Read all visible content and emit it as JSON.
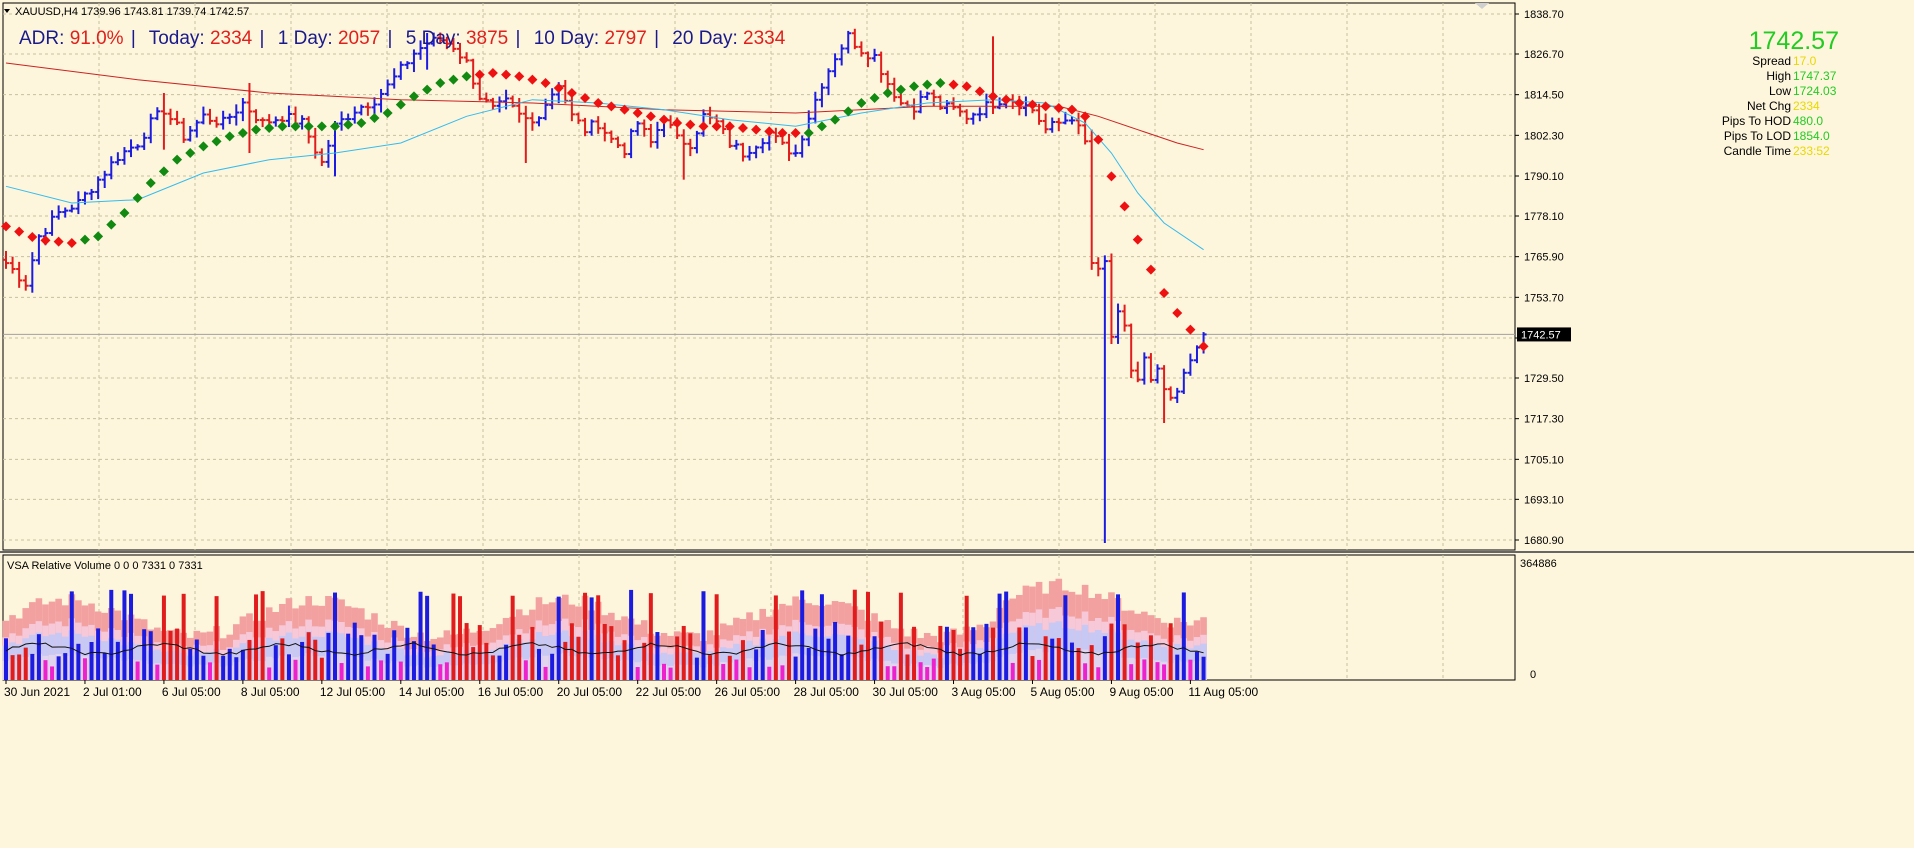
{
  "header": {
    "symbol_line": "XAUUSD,H4  1739.96 1743.81 1739.74 1742.57"
  },
  "adr": {
    "adr_label": "ADR:",
    "adr_value": "91.0%",
    "today_label": "Today:",
    "today_value": "2334",
    "d1_label": "1 Day:",
    "d1_value": "2057",
    "d5_label": "5 Day:",
    "d5_value": "3875",
    "d10_label": "10 Day:",
    "d10_value": "2797",
    "d20_label": "20 Day:",
    "d20_value": "2334",
    "sep": "|"
  },
  "info_panel": {
    "price": "1742.57",
    "rows": [
      {
        "label": "Spread",
        "value": "17.0",
        "color": "#e8d800"
      },
      {
        "label": "High",
        "value": "1747.37",
        "color": "#22cc22"
      },
      {
        "label": "Low",
        "value": "1724.03",
        "color": "#22cc22"
      },
      {
        "label": "Net Chg",
        "value": "2334",
        "color": "#e8d800"
      },
      {
        "label": "Pips To HOD",
        "value": "480.0",
        "color": "#22cc22"
      },
      {
        "label": "Pips To LOD",
        "value": "1854.0",
        "color": "#22cc22"
      },
      {
        "label": "Candle Time",
        "value": "233:52",
        "color": "#e8d800"
      }
    ]
  },
  "volume_panel": {
    "title": "VSA Relative Volume 0 0 0 7331 0 7331",
    "y_max_label": "364886",
    "y_min_label": "0"
  },
  "colors": {
    "background": "#fdf6dc",
    "bull_bar": "#1c1ce0",
    "bear_bar": "#e01c1c",
    "ma_up": "#128a12",
    "ma_down": "#ee1111",
    "ma_slow": "#cc2222",
    "ma_mid": "#33bbee",
    "grid": "#c8c0a0"
  },
  "chart_data": {
    "type": "ohlc",
    "symbol": "XAUUSD",
    "timeframe": "H4",
    "last_price": 1742.57,
    "ylim": [
      1676.0,
      1842.0
    ],
    "y_ticks": [
      1838.7,
      1826.7,
      1814.5,
      1802.3,
      1790.1,
      1778.1,
      1765.9,
      1753.7,
      1741.5,
      1729.5,
      1717.3,
      1705.1,
      1693.1,
      1680.9
    ],
    "y_tick_labels": [
      "1838.70",
      "1826.70",
      "1814.50",
      "1802.30",
      "1790.10",
      "1778.10",
      "1765.90",
      "1753.70",
      "",
      "1729.50",
      "1717.30",
      "1705.10",
      "1693.10",
      "1680.90"
    ],
    "x_labels": [
      "30 Jun 2021",
      "2 Jul 01:00",
      "6 Jul 05:00",
      "8 Jul 05:00",
      "12 Jul 05:00",
      "14 Jul 05:00",
      "16 Jul 05:00",
      "20 Jul 05:00",
      "22 Jul 05:00",
      "26 Jul 05:00",
      "28 Jul 05:00",
      "30 Jul 05:00",
      "3 Aug 05:00",
      "5 Aug 05:00",
      "9 Aug 05:00",
      "11 Aug 05:00"
    ],
    "x_label_bar_index": [
      0,
      12,
      24,
      36,
      48,
      60,
      72,
      84,
      96,
      108,
      120,
      132,
      144,
      156,
      168,
      180
    ],
    "close_path": [
      [
        0,
        1764
      ],
      [
        3,
        1758
      ],
      [
        5,
        1772
      ],
      [
        8,
        1779
      ],
      [
        11,
        1782
      ],
      [
        14,
        1789
      ],
      [
        17,
        1796
      ],
      [
        20,
        1800
      ],
      [
        22,
        1806
      ],
      [
        24,
        1810
      ],
      [
        27,
        1802
      ],
      [
        30,
        1808
      ],
      [
        33,
        1806
      ],
      [
        36,
        1812
      ],
      [
        39,
        1806
      ],
      [
        42,
        1808
      ],
      [
        45,
        1806
      ],
      [
        48,
        1794
      ],
      [
        50,
        1805
      ],
      [
        53,
        1810
      ],
      [
        56,
        1813
      ],
      [
        58,
        1817
      ],
      [
        60,
        1822
      ],
      [
        62,
        1827
      ],
      [
        64,
        1830
      ],
      [
        66,
        1831
      ],
      [
        68,
        1829
      ],
      [
        70,
        1824
      ],
      [
        72,
        1814
      ],
      [
        74,
        1810
      ],
      [
        76,
        1812
      ],
      [
        78,
        1808
      ],
      [
        80,
        1806
      ],
      [
        82,
        1812
      ],
      [
        84,
        1818
      ],
      [
        86,
        1808
      ],
      [
        88,
        1804
      ],
      [
        90,
        1806
      ],
      [
        92,
        1801
      ],
      [
        94,
        1798
      ],
      [
        96,
        1806
      ],
      [
        98,
        1800
      ],
      [
        100,
        1808
      ],
      [
        102,
        1801
      ],
      [
        104,
        1800
      ],
      [
        106,
        1808
      ],
      [
        108,
        1806
      ],
      [
        110,
        1800
      ],
      [
        112,
        1797
      ],
      [
        114,
        1800
      ],
      [
        116,
        1803
      ],
      [
        118,
        1799
      ],
      [
        120,
        1797
      ],
      [
        122,
        1808
      ],
      [
        124,
        1818
      ],
      [
        126,
        1826
      ],
      [
        128,
        1832
      ],
      [
        130,
        1828
      ],
      [
        132,
        1826
      ],
      [
        134,
        1818
      ],
      [
        136,
        1812
      ],
      [
        138,
        1811
      ],
      [
        140,
        1815
      ],
      [
        142,
        1811
      ],
      [
        144,
        1810
      ],
      [
        146,
        1808
      ],
      [
        148,
        1810
      ],
      [
        150,
        1812
      ],
      [
        152,
        1814
      ],
      [
        154,
        1812
      ],
      [
        156,
        1810
      ],
      [
        158,
        1804
      ],
      [
        160,
        1806
      ],
      [
        162,
        1808
      ],
      [
        164,
        1800
      ],
      [
        165,
        1764
      ],
      [
        166,
        1761
      ],
      [
        167,
        1764
      ],
      [
        168,
        1742
      ],
      [
        169,
        1748
      ],
      [
        170,
        1744
      ],
      [
        171,
        1732
      ],
      [
        172,
        1729
      ],
      [
        173,
        1735
      ],
      [
        174,
        1728
      ],
      [
        175,
        1731
      ],
      [
        176,
        1726
      ],
      [
        177,
        1722
      ],
      [
        178,
        1725
      ],
      [
        179,
        1730
      ],
      [
        180,
        1735
      ],
      [
        181,
        1740
      ],
      [
        182,
        1742.57
      ]
    ],
    "spikes": [
      {
        "bar": 24,
        "high": 1815,
        "low": 1798
      },
      {
        "bar": 37,
        "high": 1818,
        "low": 1797
      },
      {
        "bar": 50,
        "high": 1803,
        "low": 1790
      },
      {
        "bar": 64,
        "high": 1833,
        "low": 1822
      },
      {
        "bar": 79,
        "high": 1810,
        "low": 1794
      },
      {
        "bar": 103,
        "high": 1802,
        "low": 1789
      },
      {
        "bar": 150,
        "high": 1832,
        "low": 1810
      },
      {
        "bar": 165,
        "high": 1804,
        "low": 1762
      },
      {
        "bar": 167,
        "high": 1766,
        "low": 1680
      },
      {
        "bar": 176,
        "high": 1732,
        "low": 1716
      }
    ],
    "ma_fast": [
      [
        0,
        1775
      ],
      [
        5,
        1771
      ],
      [
        10,
        1770
      ],
      [
        14,
        1772
      ],
      [
        18,
        1779
      ],
      [
        22,
        1788
      ],
      [
        26,
        1795
      ],
      [
        30,
        1799
      ],
      [
        34,
        1802
      ],
      [
        38,
        1804
      ],
      [
        42,
        1805
      ],
      [
        46,
        1805
      ],
      [
        50,
        1805
      ],
      [
        54,
        1806
      ],
      [
        58,
        1809
      ],
      [
        62,
        1814
      ],
      [
        66,
        1818
      ],
      [
        70,
        1820
      ],
      [
        74,
        1821
      ],
      [
        78,
        1820
      ],
      [
        82,
        1818
      ],
      [
        86,
        1815
      ],
      [
        90,
        1812
      ],
      [
        94,
        1810
      ],
      [
        98,
        1808
      ],
      [
        102,
        1806
      ],
      [
        106,
        1805
      ],
      [
        110,
        1805
      ],
      [
        114,
        1804
      ],
      [
        118,
        1803
      ],
      [
        122,
        1803
      ],
      [
        126,
        1807
      ],
      [
        130,
        1812
      ],
      [
        134,
        1815
      ],
      [
        138,
        1817
      ],
      [
        142,
        1818
      ],
      [
        146,
        1817
      ],
      [
        150,
        1814
      ],
      [
        154,
        1812
      ],
      [
        158,
        1811
      ],
      [
        162,
        1810
      ],
      [
        164,
        1808
      ],
      [
        166,
        1801
      ],
      [
        168,
        1790
      ],
      [
        170,
        1781
      ],
      [
        172,
        1771
      ],
      [
        174,
        1762
      ],
      [
        176,
        1755
      ],
      [
        178,
        1749
      ],
      [
        180,
        1744
      ],
      [
        182,
        1739
      ]
    ],
    "ma_fast_up_segments": [
      [
        11,
        70
      ],
      [
        121,
        142
      ]
    ],
    "ma_slow": [
      [
        0,
        1824
      ],
      [
        20,
        1819
      ],
      [
        40,
        1815
      ],
      [
        60,
        1813
      ],
      [
        80,
        1812
      ],
      [
        100,
        1810
      ],
      [
        120,
        1809
      ],
      [
        140,
        1811
      ],
      [
        150,
        1811
      ],
      [
        160,
        1811
      ],
      [
        166,
        1808
      ],
      [
        172,
        1804
      ],
      [
        178,
        1800
      ],
      [
        182,
        1798
      ]
    ],
    "ma_mid": [
      [
        0,
        1787
      ],
      [
        10,
        1782
      ],
      [
        20,
        1783
      ],
      [
        30,
        1791
      ],
      [
        40,
        1795
      ],
      [
        50,
        1797
      ],
      [
        60,
        1800
      ],
      [
        70,
        1808
      ],
      [
        80,
        1813
      ],
      [
        90,
        1812
      ],
      [
        100,
        1810
      ],
      [
        110,
        1807
      ],
      [
        120,
        1805
      ],
      [
        130,
        1809
      ],
      [
        140,
        1812
      ],
      [
        150,
        1813
      ],
      [
        158,
        1812
      ],
      [
        164,
        1806
      ],
      [
        168,
        1797
      ],
      [
        172,
        1785
      ],
      [
        176,
        1776
      ],
      [
        182,
        1768
      ]
    ],
    "volume_ylim": [
      0,
      364886
    ]
  }
}
